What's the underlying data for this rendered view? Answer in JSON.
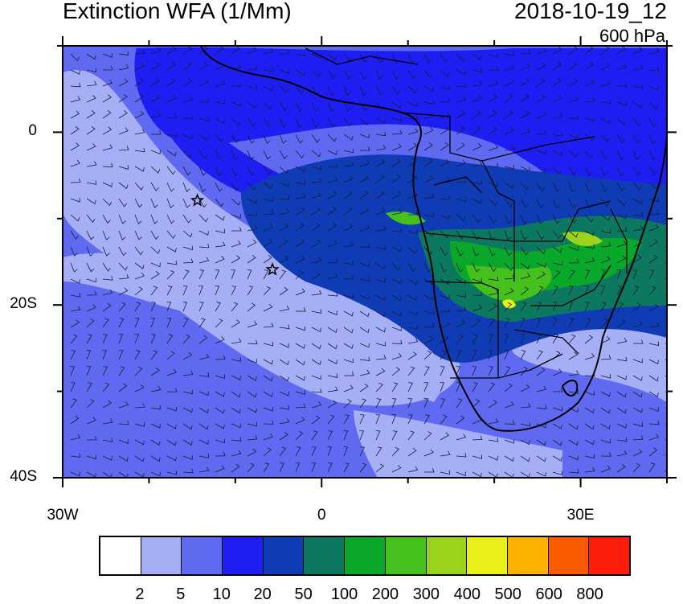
{
  "header": {
    "title": "Extinction WFA (1/Mm)",
    "date": "2018-10-19_12",
    "level": "600 hPa"
  },
  "axes": {
    "lon_labels": [
      {
        "lon": -30,
        "text": "30W"
      },
      {
        "lon": 0,
        "text": "0"
      },
      {
        "lon": 30,
        "text": "30E"
      }
    ],
    "lat_labels": [
      {
        "lat": 0,
        "text": "0"
      },
      {
        "lat": -20,
        "text": "20S"
      },
      {
        "lat": -40,
        "text": "40S"
      }
    ],
    "lon_range": [
      -30,
      40
    ],
    "lat_range": [
      -40,
      10
    ]
  },
  "stations": [
    {
      "name": "star",
      "lon": -14.4,
      "lat": -7.9
    },
    {
      "name": "star",
      "lon": -5.7,
      "lat": -15.9
    }
  ],
  "colorbar": {
    "colors": [
      "#ffffff",
      "#a6aef5",
      "#5f6af0",
      "#1e1ef2",
      "#0f3cb4",
      "#0c7860",
      "#0aa82a",
      "#46c01c",
      "#9ad21c",
      "#eaf01a",
      "#fcb000",
      "#fc5a00",
      "#fc1e0a"
    ],
    "labels": [
      "2",
      "5",
      "10",
      "20",
      "50",
      "100",
      "200",
      "300",
      "400",
      "500",
      "600",
      "800"
    ]
  }
}
